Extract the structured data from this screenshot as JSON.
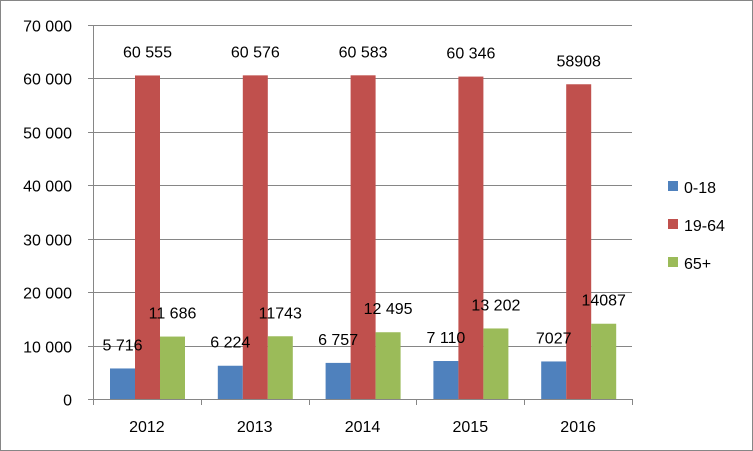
{
  "chart_data": {
    "type": "bar",
    "title": "",
    "xlabel": "",
    "ylabel": "",
    "categories": [
      "2012",
      "2013",
      "2014",
      "2015",
      "2016"
    ],
    "ylim": [
      0,
      70000
    ],
    "y_ticks": [
      0,
      10000,
      20000,
      30000,
      40000,
      50000,
      60000,
      70000
    ],
    "y_tick_labels": [
      "0",
      "10 000",
      "20 000",
      "30 000",
      "40 000",
      "50 000",
      "60 000",
      "70 000"
    ],
    "grid": true,
    "legend_position": "right",
    "series": [
      {
        "name": "0-18",
        "color": "#4f81bd",
        "values": [
          5716,
          6224,
          6757,
          7110,
          7027
        ],
        "labels": [
          "5 716",
          "6 224",
          "6 757",
          "7 110",
          "7027"
        ]
      },
      {
        "name": "19-64",
        "color": "#c0504d",
        "values": [
          60555,
          60576,
          60583,
          60346,
          58908
        ],
        "labels": [
          "60 555",
          "60 576",
          "60 583",
          "60 346",
          "58908"
        ]
      },
      {
        "name": "65+",
        "color": "#9bbb59",
        "values": [
          11686,
          11743,
          12495,
          13202,
          14087
        ],
        "labels": [
          "11 686",
          "11743",
          "12 495",
          "13 202",
          "14087"
        ]
      }
    ]
  }
}
